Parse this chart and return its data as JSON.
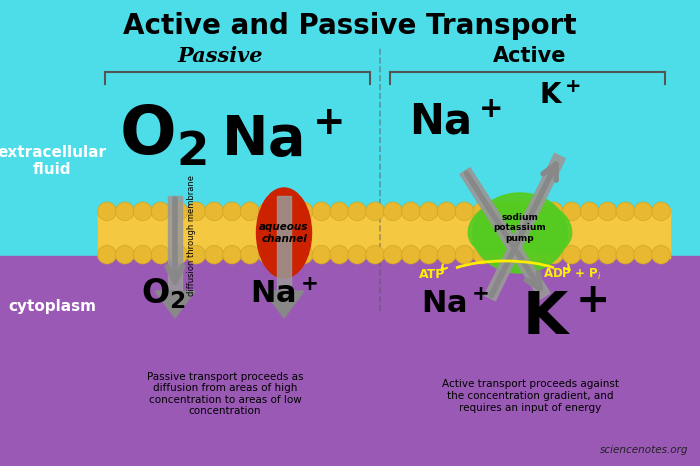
{
  "title": "Active and Passive Transport",
  "bg_top": "#4DDDE8",
  "bg_bottom": "#9B59B6",
  "membrane_color": "#F5C842",
  "extracellular_label": "extracellular\nfluid",
  "cytoplasm_label": "cytoplasm",
  "passive_label": "Passive",
  "active_label": "Active",
  "passive_desc": "Passive transport proceeds as\ndiffusion from areas of high\nconcentration to areas of low\nconcentration",
  "active_desc": "Active transport proceeds against\nthe concentration gradient, and\nrequires an input of energy",
  "watermark": "sciencenotes.org",
  "atp_color": "#FFEE00",
  "adp_color": "#FFEE00",
  "arrow_color": "#888888",
  "channel_color": "#CC2200",
  "pump_color": "#55CC22",
  "text_white": "#FFFFFF",
  "text_black": "#000000",
  "bracket_color": "#555555",
  "divider_color": "#555555"
}
